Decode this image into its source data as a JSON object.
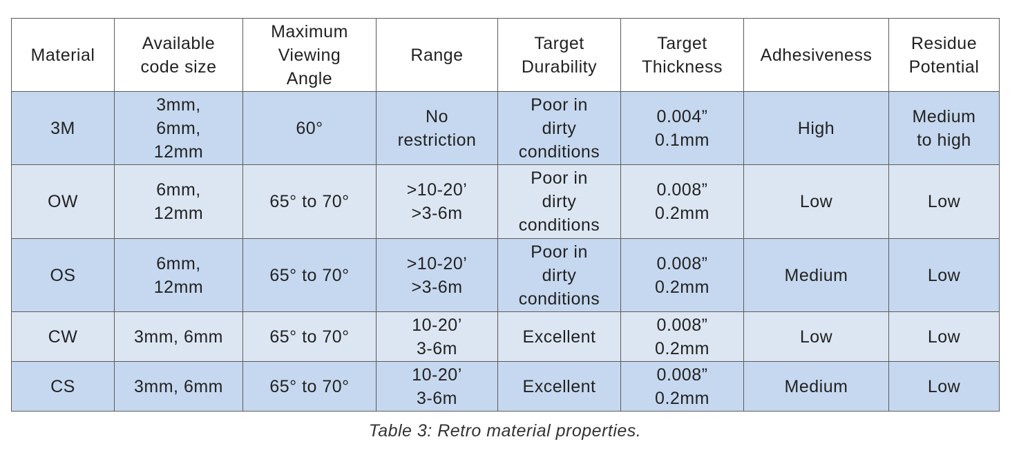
{
  "table": {
    "header": [
      [
        "Material"
      ],
      [
        "Available",
        "code size"
      ],
      [
        "Maximum",
        "Viewing",
        "Angle"
      ],
      [
        "Range"
      ],
      [
        "Target",
        "Durability"
      ],
      [
        "Target",
        "Thickness"
      ],
      [
        "Adhesiveness"
      ],
      [
        "Residue",
        "Potential"
      ]
    ],
    "rows": [
      [
        [
          "3M"
        ],
        [
          "3mm,",
          "6mm,",
          "12mm"
        ],
        [
          "60°"
        ],
        [
          "No",
          "restriction"
        ],
        [
          "Poor in",
          "dirty",
          "conditions"
        ],
        [
          "0.004”",
          "0.1mm"
        ],
        [
          "High"
        ],
        [
          "Medium",
          "to high"
        ]
      ],
      [
        [
          "OW"
        ],
        [
          "6mm,",
          "12mm"
        ],
        [
          "65° to 70°"
        ],
        [
          ">10-20’",
          ">3-6m"
        ],
        [
          "Poor in",
          "dirty",
          "conditions"
        ],
        [
          "0.008”",
          "0.2mm"
        ],
        [
          "Low"
        ],
        [
          "Low"
        ]
      ],
      [
        [
          "OS"
        ],
        [
          "6mm,",
          "12mm"
        ],
        [
          "65° to 70°"
        ],
        [
          ">10-20’",
          ">3-6m"
        ],
        [
          "Poor in",
          "dirty",
          "conditions"
        ],
        [
          "0.008”",
          "0.2mm"
        ],
        [
          "Medium"
        ],
        [
          "Low"
        ]
      ],
      [
        [
          "CW"
        ],
        [
          "3mm, 6mm"
        ],
        [
          "65° to 70°"
        ],
        [
          "10-20’",
          "3-6m"
        ],
        [
          "Excellent"
        ],
        [
          "0.008”",
          "0.2mm"
        ],
        [
          "Low"
        ],
        [
          "Low"
        ]
      ],
      [
        [
          "CS"
        ],
        [
          "3mm, 6mm"
        ],
        [
          "65° to 70°"
        ],
        [
          "10-20’",
          "3-6m"
        ],
        [
          "Excellent"
        ],
        [
          "0.008”",
          "0.2mm"
        ],
        [
          "Medium"
        ],
        [
          "Low"
        ]
      ]
    ]
  },
  "caption": "Table 3: Retro material properties."
}
